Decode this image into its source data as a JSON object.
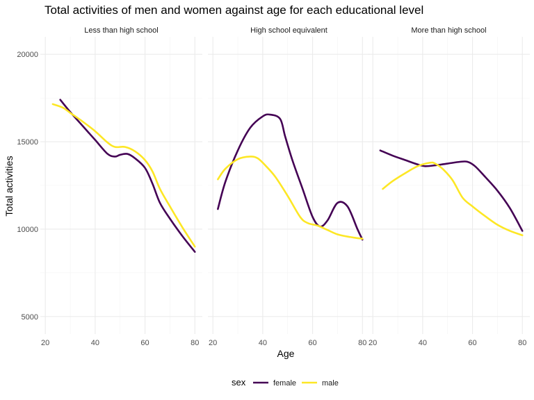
{
  "chart_data": {
    "type": "line",
    "title": "Total activities of men and women against age for each educational level",
    "xlabel": "Age",
    "ylabel": "Total activities",
    "xlim": [
      18,
      83
    ],
    "ylim": [
      4000,
      21000
    ],
    "x_ticks": [
      20,
      40,
      60,
      80
    ],
    "y_ticks": [
      5000,
      10000,
      15000,
      20000
    ],
    "grid": true,
    "legend": {
      "title": "sex",
      "position": "bottom",
      "entries": [
        "female",
        "male"
      ]
    },
    "colors": {
      "female": "#440154",
      "male": "#FDE725"
    },
    "facets": [
      {
        "label": "Less than high school",
        "series": [
          {
            "name": "female",
            "x": [
              26,
              30,
              35,
              40,
              45,
              48,
              50,
              53,
              56,
              60,
              63,
              66,
              70,
              75,
              80
            ],
            "y": [
              17400,
              16700,
              15900,
              15100,
              14300,
              14150,
              14250,
              14300,
              14050,
              13500,
              12600,
              11500,
              10600,
              9600,
              8700
            ]
          },
          {
            "name": "male",
            "x": [
              23,
              27,
              30,
              35,
              40,
              45,
              48,
              52,
              56,
              60,
              63,
              66,
              70,
              75,
              80
            ],
            "y": [
              17150,
              16950,
              16650,
              16150,
              15600,
              14950,
              14700,
              14700,
              14450,
              13950,
              13300,
              12300,
              11300,
              10100,
              9000
            ]
          }
        ]
      },
      {
        "label": "High school equivalent",
        "series": [
          {
            "name": "female",
            "x": [
              22,
              25,
              30,
              35,
              40,
              43,
              47,
              49,
              52,
              56,
              60,
              63,
              66,
              70,
              74,
              78,
              80
            ],
            "y": [
              11150,
              12700,
              14500,
              15800,
              16450,
              16550,
              16300,
              15300,
              13900,
              12300,
              10700,
              10150,
              10500,
              11500,
              11300,
              10000,
              9400
            ]
          },
          {
            "name": "male",
            "x": [
              22,
              25,
              30,
              35,
              38,
              41,
              45,
              50,
              55,
              58,
              62,
              66,
              70,
              75,
              80
            ],
            "y": [
              12850,
              13450,
              14000,
              14150,
              14050,
              13650,
              13000,
              11900,
              10700,
              10350,
              10200,
              9950,
              9700,
              9550,
              9450
            ]
          }
        ]
      },
      {
        "label": "More than high school",
        "series": [
          {
            "name": "female",
            "x": [
              23,
              28,
              33,
              38,
              41,
              45,
              50,
              55,
              58,
              61,
              65,
              70,
              75,
              80
            ],
            "y": [
              14500,
              14200,
              13950,
              13700,
              13600,
              13650,
              13750,
              13850,
              13850,
              13600,
              13000,
              12200,
              11200,
              9900
            ]
          },
          {
            "name": "male",
            "x": [
              24,
              28,
              33,
              38,
              43,
              45,
              48,
              52,
              56,
              60,
              65,
              70,
              75,
              80
            ],
            "y": [
              12300,
              12750,
              13200,
              13600,
              13800,
              13750,
              13450,
              12800,
              11800,
              11300,
              10750,
              10250,
              9900,
              9650
            ]
          }
        ]
      }
    ]
  }
}
